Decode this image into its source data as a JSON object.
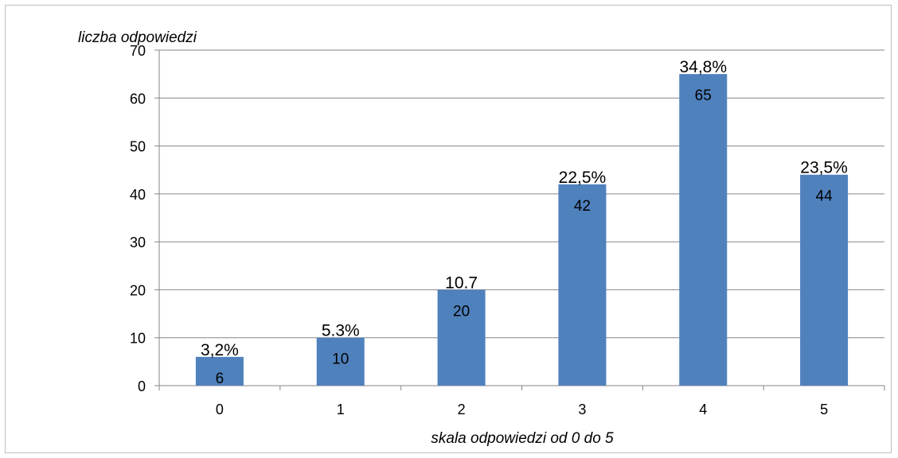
{
  "chart_data": {
    "type": "bar",
    "categories": [
      "0",
      "1",
      "2",
      "3",
      "4",
      "5"
    ],
    "values": [
      6,
      10,
      20,
      42,
      65,
      44
    ],
    "percent_labels": [
      "3,2%",
      "5.3%",
      "10.7",
      "22,5%",
      "34,8%",
      "23,5%"
    ],
    "value_labels": [
      "6",
      "10",
      "20",
      "42",
      "65",
      "44"
    ],
    "xlabel": "skala odpowiedzi od 0 do 5",
    "ylabel": "liczba odpowiedzi",
    "ylim": [
      0,
      70
    ],
    "yticks": [
      "0",
      "10",
      "20",
      "30",
      "40",
      "50",
      "60",
      "70"
    ],
    "grid": true,
    "bar_color": "#4F81BD",
    "grid_color": "#868686"
  }
}
